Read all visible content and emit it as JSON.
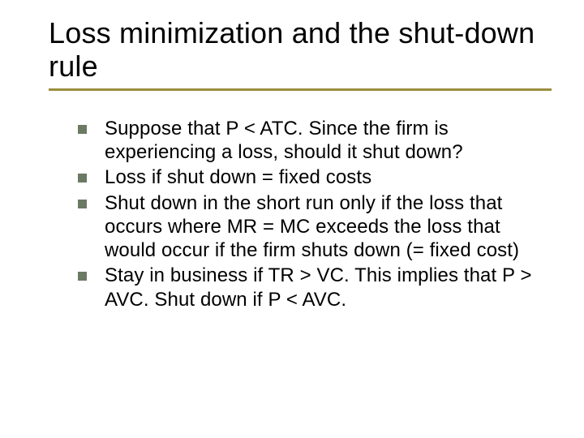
{
  "slide": {
    "title": "Loss minimization and the shut-down rule",
    "title_fontsize": 36,
    "title_color": "#000000",
    "underline_color": "#9b8d3f",
    "underline_thickness": 3,
    "background_color": "#ffffff",
    "bullet_marker": {
      "shape": "square",
      "size": 11,
      "color": "#6b7a63"
    },
    "body_fontsize": 24,
    "body_color": "#000000",
    "bullets": [
      "Suppose that P < ATC. Since the firm is experiencing a loss, should it shut down?",
      "Loss if shut down = fixed costs",
      "Shut down in the short run only if the loss that occurs where MR = MC exceeds the loss that would occur if the firm shuts down (= fixed cost)",
      "Stay in business if TR > VC. This implies that P > AVC. Shut down if P < AVC."
    ]
  }
}
